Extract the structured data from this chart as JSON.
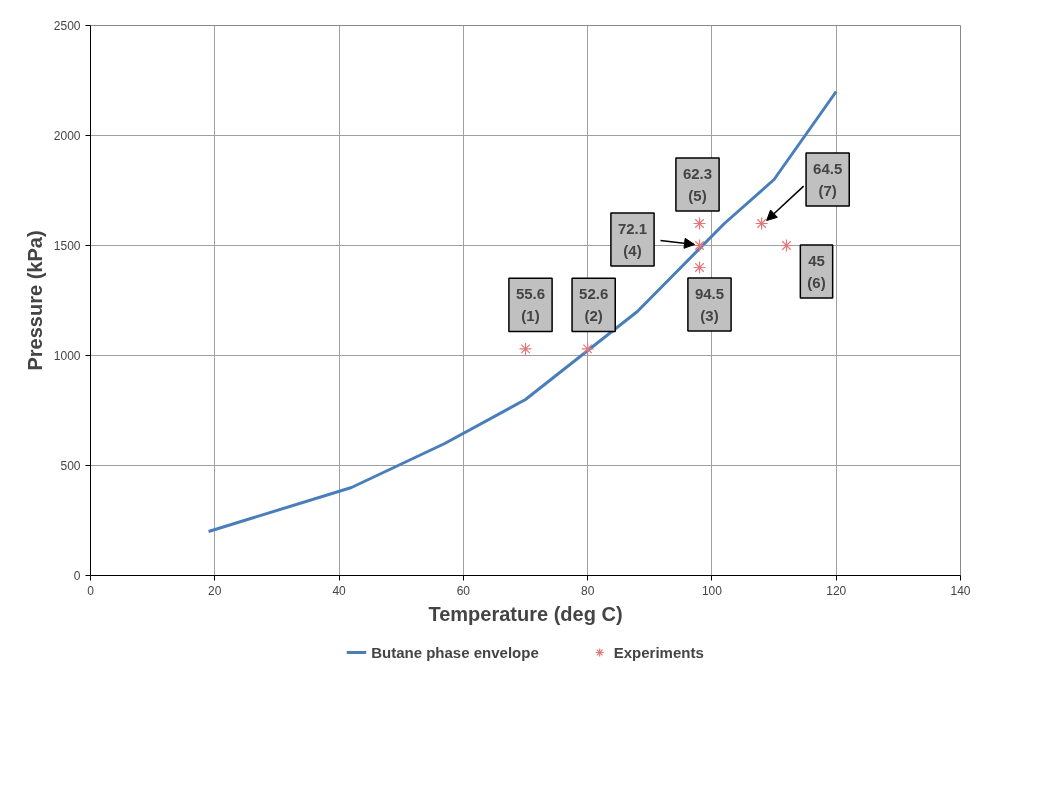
{
  "chart_data": {
    "type": "line",
    "xlabel": "Temperature (deg C)",
    "ylabel": "Pressure (kPa)",
    "xlim": [
      0,
      140
    ],
    "xticks": [
      0,
      20,
      40,
      60,
      80,
      100,
      120,
      140
    ],
    "ylim": [
      0,
      2500
    ],
    "yticks": [
      0,
      500,
      1000,
      1500,
      2000,
      2500
    ],
    "grid": true,
    "legend": "bottom",
    "line_style": "solid",
    "series": [
      {
        "name": "Butane phase envelope",
        "color": "#4a7ebb",
        "marker": "none",
        "x": [
          19,
          42,
          57,
          70,
          79,
          88,
          95,
          102,
          110,
          115,
          120
        ],
        "values": [
          200,
          400,
          600,
          800,
          1000,
          1200,
          1400,
          1600,
          1800,
          2000,
          2200
        ]
      },
      {
        "name": "Experiments",
        "type": "scatter",
        "color": "#e07a7a",
        "marker": "cross",
        "x": [
          70,
          80,
          98,
          98,
          98,
          112,
          108
        ],
        "values": [
          1030,
          1030,
          1400,
          1500,
          1600,
          1500,
          1600
        ]
      }
    ],
    "annotations": [
      {
        "text": "55.6\n(1)",
        "x": 70,
        "y": 1030
      },
      {
        "text": "52.6\n(2)",
        "x": 80,
        "y": 1030
      },
      {
        "text": "94.5\n(3)",
        "x": 98,
        "y": 1400
      },
      {
        "text": "72.1\n(4)",
        "x": 98,
        "y": 1500
      },
      {
        "text": "62.3\n(5)",
        "x": 98,
        "y": 1600
      },
      {
        "text": "45\n(6)",
        "x": 112,
        "y": 1500
      },
      {
        "text": "64.5\n(7)",
        "x": 108,
        "y": 1600
      }
    ]
  }
}
